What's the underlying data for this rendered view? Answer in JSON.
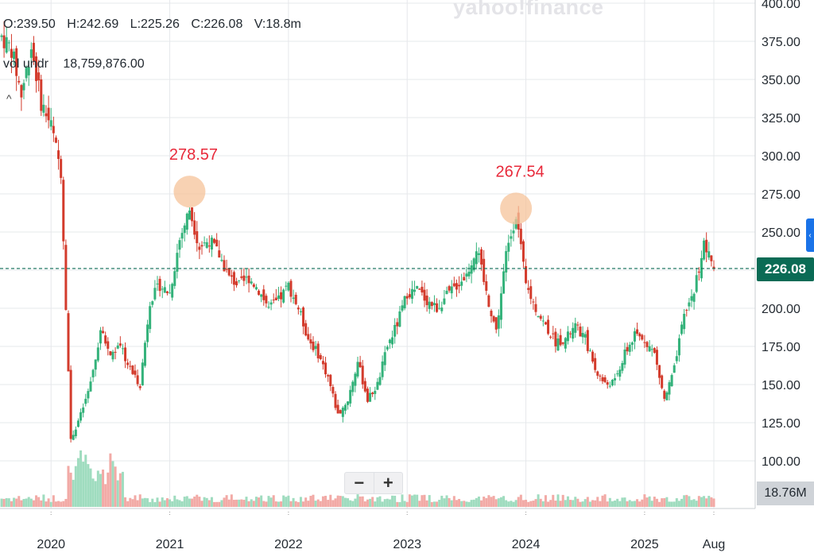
{
  "watermark": "yahoo!finance",
  "ohlc": {
    "open": "O:239.50",
    "high": "H:242.69",
    "low": "L:225.26",
    "close": "C:226.08",
    "volume": "V:18.8m"
  },
  "vol_indicator": {
    "label": "vol undr",
    "value": "18,759,876.00"
  },
  "last_price_label": "226.08",
  "last_volume_label": "18.76M",
  "zoom": {
    "minus": "−",
    "plus": "+"
  },
  "colors": {
    "up": "#33b27a",
    "down": "#d33b2c",
    "vol_up": "#9fdcbf",
    "vol_down": "#f2aaa6",
    "accent": "#0a6b55",
    "annotation": "#e8293a",
    "circle": "#f6c39a"
  },
  "chart_data": {
    "type": "candlestick",
    "y_ticks": [
      "400.00",
      "375.00",
      "350.00",
      "325.00",
      "300.00",
      "275.00",
      "250.00",
      "225.00",
      "200.00",
      "175.00",
      "150.00",
      "125.00",
      "100.00"
    ],
    "x_ticks": [
      "2020",
      "2021",
      "2022",
      "2023",
      "2024",
      "2025",
      "Aug"
    ],
    "ylim": [
      87,
      402
    ],
    "last_price": 226.08,
    "annotations": [
      {
        "label": "278.57",
        "date": "2021-03",
        "value": 278.57
      },
      {
        "label": "267.54",
        "date": "2023-12",
        "value": 267.54
      }
    ],
    "series_monthly_close": [
      {
        "date": "2019-08",
        "close": 378
      },
      {
        "date": "2019-09",
        "close": 370
      },
      {
        "date": "2019-10",
        "close": 340
      },
      {
        "date": "2019-11",
        "close": 372
      },
      {
        "date": "2019-12",
        "close": 335
      },
      {
        "date": "2020-01",
        "close": 320
      },
      {
        "date": "2020-02",
        "close": 290
      },
      {
        "date": "2020-03",
        "close": 115
      },
      {
        "date": "2020-04",
        "close": 130
      },
      {
        "date": "2020-05",
        "close": 150
      },
      {
        "date": "2020-06",
        "close": 185
      },
      {
        "date": "2020-07",
        "close": 170
      },
      {
        "date": "2020-08",
        "close": 175
      },
      {
        "date": "2020-09",
        "close": 160
      },
      {
        "date": "2020-10",
        "close": 150
      },
      {
        "date": "2020-11",
        "close": 205
      },
      {
        "date": "2020-12",
        "close": 215
      },
      {
        "date": "2021-01",
        "close": 210
      },
      {
        "date": "2021-02",
        "close": 245
      },
      {
        "date": "2021-03",
        "close": 265
      },
      {
        "date": "2021-04",
        "close": 240
      },
      {
        "date": "2021-05",
        "close": 245
      },
      {
        "date": "2021-06",
        "close": 235
      },
      {
        "date": "2021-07",
        "close": 220
      },
      {
        "date": "2021-08",
        "close": 215
      },
      {
        "date": "2021-09",
        "close": 220
      },
      {
        "date": "2021-10",
        "close": 212
      },
      {
        "date": "2021-11",
        "close": 200
      },
      {
        "date": "2021-12",
        "close": 205
      },
      {
        "date": "2022-01",
        "close": 215
      },
      {
        "date": "2022-02",
        "close": 200
      },
      {
        "date": "2022-03",
        "close": 180
      },
      {
        "date": "2022-04",
        "close": 170
      },
      {
        "date": "2022-05",
        "close": 155
      },
      {
        "date": "2022-06",
        "close": 130
      },
      {
        "date": "2022-07",
        "close": 140
      },
      {
        "date": "2022-08",
        "close": 165
      },
      {
        "date": "2022-09",
        "close": 140
      },
      {
        "date": "2022-10",
        "close": 150
      },
      {
        "date": "2022-11",
        "close": 175
      },
      {
        "date": "2022-12",
        "close": 190
      },
      {
        "date": "2023-01",
        "close": 210
      },
      {
        "date": "2023-02",
        "close": 212
      },
      {
        "date": "2023-03",
        "close": 205
      },
      {
        "date": "2023-04",
        "close": 200
      },
      {
        "date": "2023-05",
        "close": 208
      },
      {
        "date": "2023-06",
        "close": 215
      },
      {
        "date": "2023-07",
        "close": 222
      },
      {
        "date": "2023-08",
        "close": 240
      },
      {
        "date": "2023-09",
        "close": 210
      },
      {
        "date": "2023-10",
        "close": 185
      },
      {
        "date": "2023-11",
        "close": 235
      },
      {
        "date": "2023-12",
        "close": 262
      },
      {
        "date": "2024-01",
        "close": 215
      },
      {
        "date": "2024-02",
        "close": 200
      },
      {
        "date": "2024-03",
        "close": 188
      },
      {
        "date": "2024-04",
        "close": 178
      },
      {
        "date": "2024-05",
        "close": 180
      },
      {
        "date": "2024-06",
        "close": 188
      },
      {
        "date": "2024-07",
        "close": 180
      },
      {
        "date": "2024-08",
        "close": 160
      },
      {
        "date": "2024-09",
        "close": 150
      },
      {
        "date": "2024-10",
        "close": 152
      },
      {
        "date": "2024-11",
        "close": 170
      },
      {
        "date": "2024-12",
        "close": 182
      },
      {
        "date": "2025-01",
        "close": 180
      },
      {
        "date": "2025-02",
        "close": 170
      },
      {
        "date": "2025-03",
        "close": 140
      },
      {
        "date": "2025-04",
        "close": 160
      },
      {
        "date": "2025-05",
        "close": 195
      },
      {
        "date": "2025-06",
        "close": 212
      },
      {
        "date": "2025-07",
        "close": 242
      },
      {
        "date": "2025-08",
        "close": 226
      }
    ],
    "volume_last": 18759876
  }
}
